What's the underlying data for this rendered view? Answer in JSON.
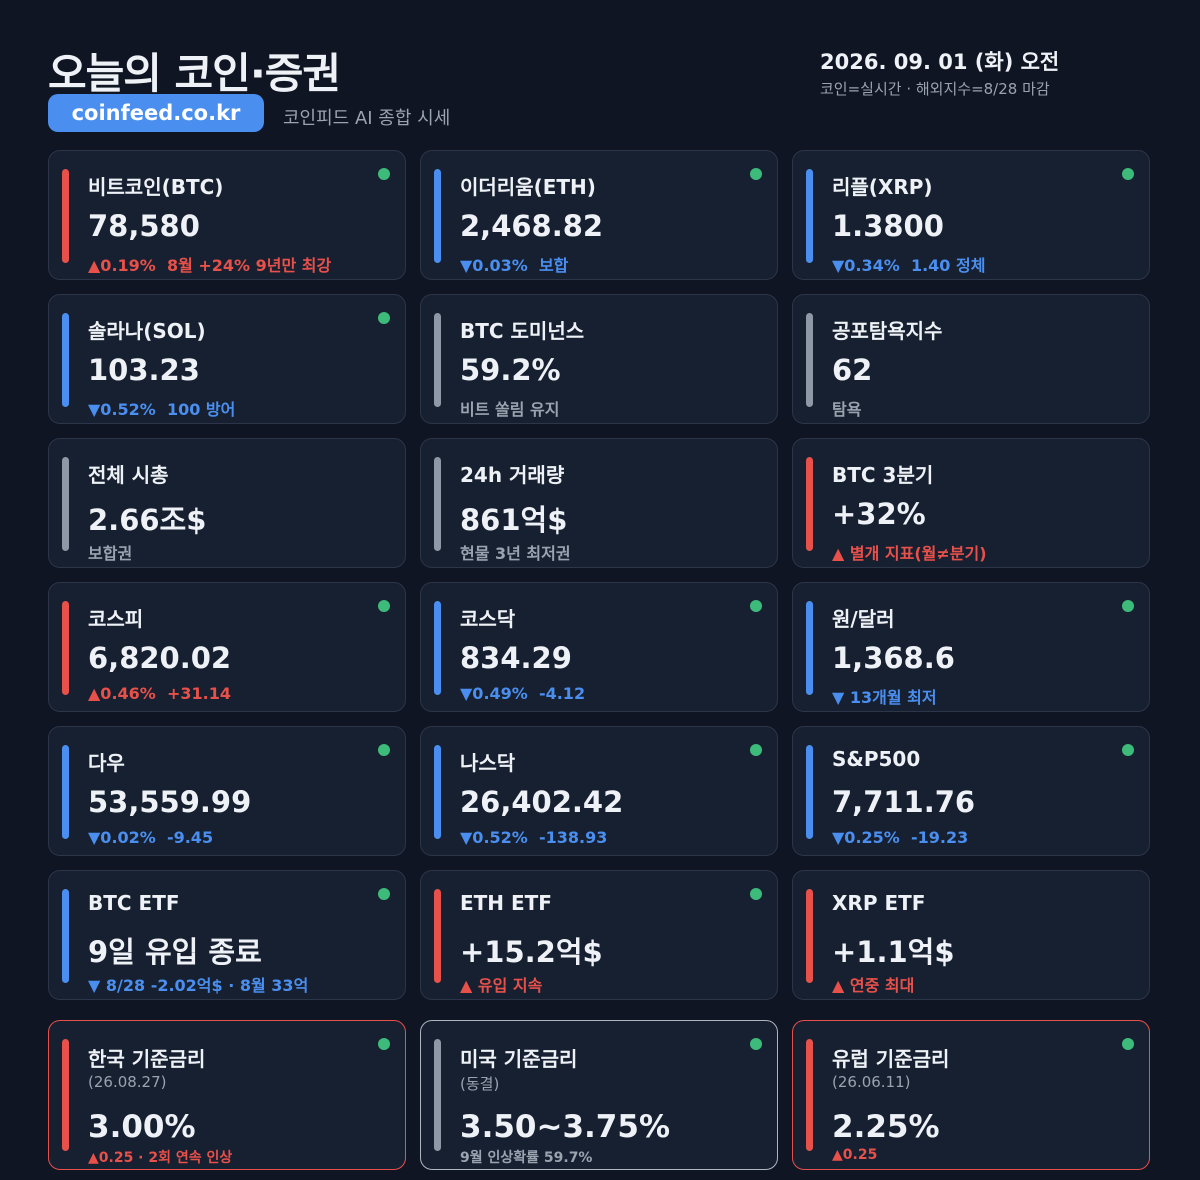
{
  "header": {
    "title": "오늘의 코인·증권",
    "site": "coinfeed.co.kr",
    "subtitle": "코인피드 AI 종합 시세",
    "date": "2026. 09. 01 (화) 오전",
    "note": "코인=실시간 · 해외지수=8/28 마감"
  },
  "cards": [
    {
      "label": "비트코인(BTC)",
      "value": "78,580",
      "detail": "▲0.19%  8월 +24% 9년만 최강",
      "accent": "red",
      "tone": "red",
      "live": true
    },
    {
      "label": "이더리움(ETH)",
      "value": "2,468.82",
      "detail": "▼0.03%  보합",
      "accent": "blue",
      "tone": "blue",
      "live": true
    },
    {
      "label": "리플(XRP)",
      "value": "1.3800",
      "detail": "▼0.34%  1.40 정체",
      "accent": "blue",
      "tone": "blue",
      "live": true
    },
    {
      "label": "솔라나(SOL)",
      "value": "103.23",
      "detail": "▼0.52%  100 방어",
      "accent": "blue",
      "tone": "blue",
      "live": true
    },
    {
      "label": "BTC 도미넌스",
      "value": "59.2%",
      "detail": "비트 쏠림 유지",
      "accent": "gray",
      "tone": "gray",
      "live": false
    },
    {
      "label": "공포탐욕지수",
      "value": "62",
      "detail": "탐욕",
      "accent": "gray",
      "tone": "gray",
      "live": false
    },
    {
      "label": "전체 시총",
      "value": "2.66조$",
      "detail": "보합권",
      "accent": "gray",
      "tone": "gray",
      "live": false
    },
    {
      "label": "24h 거래량",
      "value": "861억$",
      "detail": "현물 3년 최저권",
      "accent": "gray",
      "tone": "gray",
      "live": false
    },
    {
      "label": "BTC 3분기",
      "value": "+32%",
      "detail": "▲ 별개 지표(월≠분기)",
      "accent": "red",
      "tone": "red",
      "live": false
    },
    {
      "label": "코스피",
      "value": "6,820.02",
      "detail": "▲0.46%  +31.14",
      "accent": "red",
      "tone": "red",
      "live": true
    },
    {
      "label": "코스닥",
      "value": "834.29",
      "detail": "▼0.49%  -4.12",
      "accent": "blue",
      "tone": "blue",
      "live": true
    },
    {
      "label": "원/달러",
      "value": "1,368.6",
      "detail": "▼ 13개월 최저",
      "accent": "blue",
      "tone": "blue",
      "live": true
    },
    {
      "label": "다우",
      "value": "53,559.99",
      "detail": "▼0.02%  -9.45",
      "accent": "blue",
      "tone": "blue",
      "live": true
    },
    {
      "label": "나스닥",
      "value": "26,402.42",
      "detail": "▼0.52%  -138.93",
      "accent": "blue",
      "tone": "blue",
      "live": true
    },
    {
      "label": "S&P500",
      "value": "7,711.76",
      "detail": "▼0.25%  -19.23",
      "accent": "blue",
      "tone": "blue",
      "live": true
    },
    {
      "label": "BTC ETF",
      "value": "9일 유입 종료",
      "detail": "▼ 8/28 -2.02억$ · 8월 33억",
      "accent": "blue",
      "tone": "blue",
      "live": true
    },
    {
      "label": "ETH ETF",
      "value": "+15.2억$",
      "detail": "▲ 유입 지속",
      "accent": "red",
      "tone": "red",
      "live": true
    },
    {
      "label": "XRP ETF",
      "value": "+1.1억$",
      "detail": "▲ 연중 최대",
      "accent": "red",
      "tone": "red",
      "live": false
    },
    {
      "label": "한국 기준금리",
      "note": "(26.08.27)",
      "value": "3.00%",
      "detail": "▲0.25 · 2회 연속 인상",
      "accent": "red",
      "tone": "red",
      "live": true,
      "border": "red"
    },
    {
      "label": "미국 기준금리",
      "note": "(동결)",
      "value": "3.50~3.75%",
      "detail": "9월 인상확률 59.7%",
      "accent": "gray",
      "tone": "gray",
      "live": true,
      "border": "light"
    },
    {
      "label": "유럽 기준금리",
      "note": "(26.06.11)",
      "value": "2.25%",
      "detail": "▲0.25",
      "accent": "red",
      "tone": "red",
      "live": true,
      "border": "red"
    }
  ]
}
